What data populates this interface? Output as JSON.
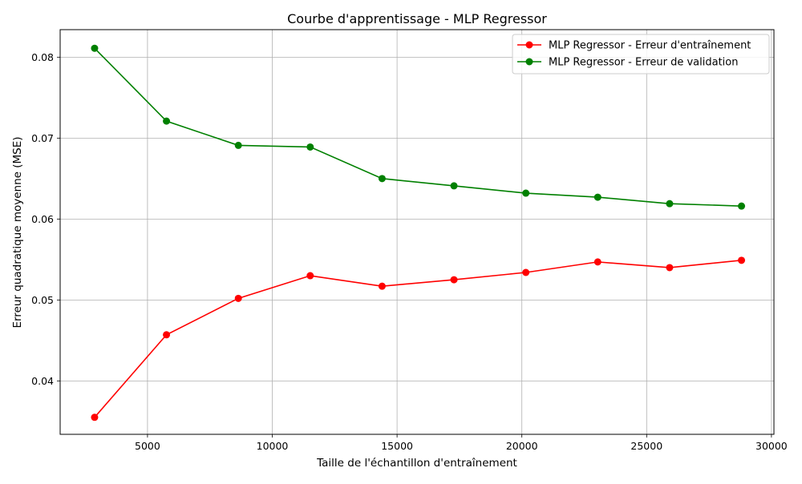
{
  "chart_data": {
    "type": "line",
    "title": "Courbe d'apprentissage - MLP Regressor",
    "xlabel": "Taille de l'échantillon d'entraînement",
    "ylabel": "Erreur quadratique moyenne (MSE)",
    "xlim": [
      1500,
      30100
    ],
    "ylim": [
      0.0334,
      0.0834
    ],
    "xticks": [
      5000,
      10000,
      15000,
      20000,
      25000,
      30000
    ],
    "yticks": [
      0.04,
      0.05,
      0.06,
      0.07,
      0.08
    ],
    "xtick_labels": [
      "5000",
      "10000",
      "15000",
      "20000",
      "25000",
      "30000"
    ],
    "ytick_labels": [
      "0.04",
      "0.05",
      "0.06",
      "0.07",
      "0.08"
    ],
    "grid": true,
    "legend_position": "top-right",
    "x": [
      2880,
      5760,
      8640,
      11520,
      14400,
      17280,
      20160,
      23040,
      25920,
      28800
    ],
    "series": [
      {
        "name": "MLP Regressor - Erreur d'entraînement",
        "color": "#ff0000",
        "values": [
          0.0355,
          0.0457,
          0.0502,
          0.053,
          0.0517,
          0.0525,
          0.0534,
          0.0547,
          0.054,
          0.0549
        ]
      },
      {
        "name": "MLP Regressor - Erreur de validation",
        "color": "#008000",
        "values": [
          0.0811,
          0.0721,
          0.0691,
          0.0689,
          0.065,
          0.0641,
          0.0632,
          0.0627,
          0.0619,
          0.0616
        ]
      }
    ]
  }
}
